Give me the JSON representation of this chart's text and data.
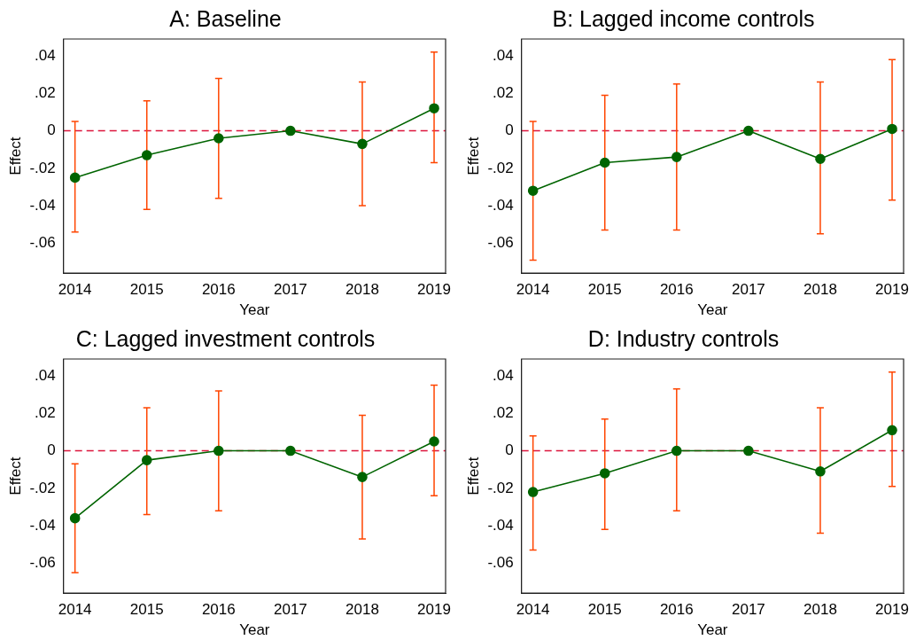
{
  "chart_data": [
    {
      "type": "line",
      "title": "A: Baseline",
      "xlabel": "Year",
      "ylabel": "Effect",
      "x": [
        2014,
        2015,
        2016,
        2017,
        2018,
        2019
      ],
      "values": [
        -0.025,
        -0.013,
        -0.004,
        0,
        -0.007,
        0.012
      ],
      "errors": [
        [
          -0.054,
          0.005
        ],
        [
          -0.042,
          0.016
        ],
        [
          -0.036,
          0.028
        ],
        null,
        [
          -0.04,
          0.026
        ],
        [
          -0.017,
          0.042
        ]
      ],
      "color": "#006400",
      "marker": "circle",
      "xlim": [
        2013.84,
        2019.16
      ],
      "xticks": [
        2014,
        2015,
        2016,
        2017,
        2018,
        2019
      ],
      "ylim": [
        -0.076,
        0.049
      ],
      "yticks": [
        {
          "value": -0.06,
          "label": "-.06"
        },
        {
          "value": -0.04,
          "label": "-.04"
        },
        {
          "value": -0.02,
          "label": "-.02"
        },
        {
          "value": 0,
          "label": "0"
        },
        {
          "value": 0.02,
          "label": ".02"
        },
        {
          "value": 0.04,
          "label": ".04"
        }
      ],
      "ref_lines": [
        {
          "axis": "y",
          "value": 0,
          "color": "#dc143c",
          "line_style": "dashed"
        }
      ],
      "grid": false,
      "legend": false
    },
    {
      "type": "line",
      "title": "B: Lagged income controls",
      "xlabel": "Year",
      "ylabel": "Effect",
      "x": [
        2014,
        2015,
        2016,
        2017,
        2018,
        2019
      ],
      "values": [
        -0.032,
        -0.017,
        -0.014,
        0,
        -0.015,
        0.001
      ],
      "errors": [
        [
          -0.069,
          0.005
        ],
        [
          -0.053,
          0.019
        ],
        [
          -0.053,
          0.025
        ],
        null,
        [
          -0.055,
          0.026
        ],
        [
          -0.037,
          0.038
        ]
      ],
      "color": "#006400",
      "marker": "circle",
      "xlim": [
        2013.84,
        2019.16
      ],
      "xticks": [
        2014,
        2015,
        2016,
        2017,
        2018,
        2019
      ],
      "ylim": [
        -0.076,
        0.049
      ],
      "yticks": [
        {
          "value": -0.06,
          "label": "-.06"
        },
        {
          "value": -0.04,
          "label": "-.04"
        },
        {
          "value": -0.02,
          "label": "-.02"
        },
        {
          "value": 0,
          "label": "0"
        },
        {
          "value": 0.02,
          "label": ".02"
        },
        {
          "value": 0.04,
          "label": ".04"
        }
      ],
      "ref_lines": [
        {
          "axis": "y",
          "value": 0,
          "color": "#dc143c",
          "line_style": "dashed"
        }
      ],
      "grid": false,
      "legend": false
    },
    {
      "type": "line",
      "title": "C: Lagged investment controls",
      "xlabel": "Year",
      "ylabel": "Effect",
      "x": [
        2014,
        2015,
        2016,
        2017,
        2018,
        2019
      ],
      "values": [
        -0.036,
        -0.005,
        0,
        0,
        -0.014,
        0.005
      ],
      "errors": [
        [
          -0.065,
          -0.007
        ],
        [
          -0.034,
          0.023
        ],
        [
          -0.032,
          0.032
        ],
        null,
        [
          -0.047,
          0.019
        ],
        [
          -0.024,
          0.035
        ]
      ],
      "color": "#006400",
      "marker": "circle",
      "xlim": [
        2013.84,
        2019.16
      ],
      "xticks": [
        2014,
        2015,
        2016,
        2017,
        2018,
        2019
      ],
      "ylim": [
        -0.076,
        0.049
      ],
      "yticks": [
        {
          "value": -0.06,
          "label": "-.06"
        },
        {
          "value": -0.04,
          "label": "-.04"
        },
        {
          "value": -0.02,
          "label": "-.02"
        },
        {
          "value": 0,
          "label": "0"
        },
        {
          "value": 0.02,
          "label": ".02"
        },
        {
          "value": 0.04,
          "label": ".04"
        }
      ],
      "ref_lines": [
        {
          "axis": "y",
          "value": 0,
          "color": "#dc143c",
          "line_style": "dashed"
        }
      ],
      "grid": false,
      "legend": false
    },
    {
      "type": "line",
      "title": "D: Industry controls",
      "xlabel": "Year",
      "ylabel": "Effect",
      "x": [
        2014,
        2015,
        2016,
        2017,
        2018,
        2019
      ],
      "values": [
        -0.022,
        -0.012,
        0,
        0,
        -0.011,
        0.011
      ],
      "errors": [
        [
          -0.053,
          0.008
        ],
        [
          -0.042,
          0.017
        ],
        [
          -0.032,
          0.033
        ],
        null,
        [
          -0.044,
          0.023
        ],
        [
          -0.019,
          0.042
        ]
      ],
      "color": "#006400",
      "marker": "circle",
      "xlim": [
        2013.84,
        2019.16
      ],
      "xticks": [
        2014,
        2015,
        2016,
        2017,
        2018,
        2019
      ],
      "ylim": [
        -0.076,
        0.049
      ],
      "yticks": [
        {
          "value": -0.06,
          "label": "-.06"
        },
        {
          "value": -0.04,
          "label": "-.04"
        },
        {
          "value": -0.02,
          "label": "-.02"
        },
        {
          "value": 0,
          "label": "0"
        },
        {
          "value": 0.02,
          "label": ".02"
        },
        {
          "value": 0.04,
          "label": ".04"
        }
      ],
      "ref_lines": [
        {
          "axis": "y",
          "value": 0,
          "color": "#dc143c",
          "line_style": "dashed"
        }
      ],
      "grid": false,
      "legend": false
    }
  ]
}
